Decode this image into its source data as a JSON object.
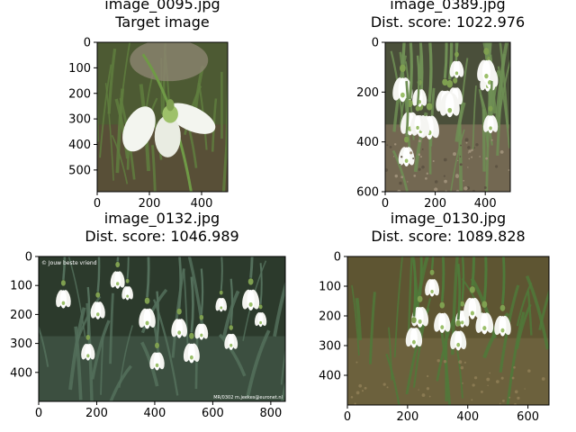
{
  "chart_data": [
    {
      "type": "image",
      "title_lines": [
        "image_0095.jpg",
        "Target image"
      ],
      "image_width": 500,
      "image_height": 585,
      "xlim": [
        0,
        500
      ],
      "ylim": [
        585,
        0
      ],
      "x_ticks": [
        "0",
        "200",
        "400"
      ],
      "y_ticks": [
        "0",
        "100",
        "200",
        "300",
        "400",
        "500"
      ],
      "scene": "single",
      "colors": {
        "bg": "#4d5a33",
        "ground": "#5b4e38",
        "petal": "#f3f5ef",
        "leaf": "#5f7e3e"
      }
    },
    {
      "type": "image",
      "title_lines": [
        "image_0389.jpg",
        "Dist. score: 1022.976"
      ],
      "image_width": 500,
      "image_height": 600,
      "xlim": [
        0,
        500
      ],
      "ylim": [
        600,
        0
      ],
      "x_ticks": [
        "0",
        "200",
        "400"
      ],
      "y_ticks": [
        "0",
        "200",
        "400",
        "600"
      ],
      "scene": "cluster",
      "colors": {
        "bg": "#4a4f3a",
        "ground": "#7a6c57",
        "petal": "#f5f5f2",
        "leaf": "#6f8f55"
      }
    },
    {
      "type": "image",
      "title_lines": [
        "image_0132.jpg",
        "Dist. score: 1046.989"
      ],
      "image_width": 850,
      "image_height": 500,
      "xlim": [
        0,
        850
      ],
      "ylim": [
        500,
        0
      ],
      "x_ticks": [
        "0",
        "200",
        "400",
        "600",
        "800"
      ],
      "y_ticks": [
        "0",
        "100",
        "200",
        "300",
        "400"
      ],
      "scene": "leaves",
      "watermark_tl": "© Jouw beste vriend",
      "watermark_br": "MR/0302 m.jeekes@euronet.nl",
      "colors": {
        "bg": "#2c3a2c",
        "ground": "#3f5344",
        "petal": "#f4f4f0",
        "leaf": "#54705c"
      }
    },
    {
      "type": "image",
      "title_lines": [
        "image_0130.jpg",
        "Dist. score: 1089.828"
      ],
      "image_width": 670,
      "image_height": 500,
      "xlim": [
        0,
        670
      ],
      "ylim": [
        500,
        0
      ],
      "x_ticks": [
        "0",
        "200",
        "400",
        "600"
      ],
      "y_ticks": [
        "0",
        "100",
        "200",
        "300",
        "400"
      ],
      "scene": "clump",
      "colors": {
        "bg": "#5e5532",
        "ground": "#6f6440",
        "petal": "#f2f3ee",
        "leaf": "#4f7a3a"
      }
    }
  ]
}
